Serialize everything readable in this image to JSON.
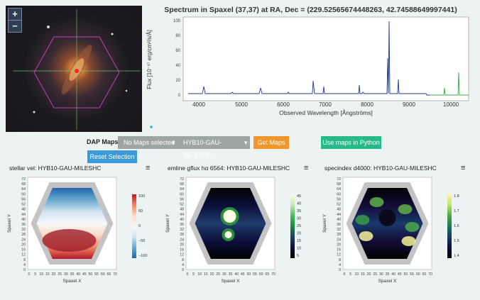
{
  "galaxy": {
    "zoom_in": "+",
    "zoom_out": "−"
  },
  "spectrum": {
    "title": "Spectrum in Spaxel (37,37) at RA, Dec = (229.52565674448263, 42.74588649997441)",
    "ylabel": "Flux [10⁻¹⁷ erg/cm²/s/Å]",
    "xlabel": "Observed Wavelength [Ångströms]",
    "xticks": [
      "4000",
      "5000",
      "6000",
      "7000",
      "8000",
      "9000",
      "10000"
    ],
    "yticks": [
      "100",
      "80",
      "60",
      "40",
      "20",
      "0"
    ]
  },
  "controls": {
    "dap_label": "DAP Maps:",
    "maps_selected": "No Maps selected",
    "binning": "HYB10-GAU-MILESHC",
    "get_maps": "Get Maps",
    "python": "Use maps in Python",
    "reset": "Reset Selection"
  },
  "maps": [
    {
      "title": "stellar vel: HYB10-GAU-MILESHC",
      "cbar": [
        "100",
        "50",
        "0",
        "−50",
        "−100"
      ]
    },
    {
      "title": "emline gflux hα 6564: HYB10-GAU-MILESHC",
      "cbar": [
        "45",
        "40",
        "35",
        "30",
        "25",
        "20",
        "15",
        "10",
        "5"
      ]
    },
    {
      "title": "specindex d4000: HYB10-GAU-MILESHC",
      "cbar": [
        "1.8",
        "1.7",
        "1.6",
        "1.5",
        "1.4"
      ]
    }
  ],
  "map_axes": {
    "xlabel": "Spaxel X",
    "ylabel": "Spaxel Y",
    "yticks": [
      "72",
      "68",
      "64",
      "60",
      "56",
      "52",
      "48",
      "44",
      "40",
      "36",
      "32",
      "28",
      "24",
      "20",
      "16",
      "12",
      "8",
      "4",
      "0"
    ],
    "xticks": [
      "0",
      "5",
      "10",
      "15",
      "20",
      "25",
      "30",
      "35",
      "40",
      "45",
      "50",
      "55",
      "60",
      "65",
      "70"
    ]
  },
  "colors": {
    "get_maps": "#f0962a",
    "python": "#27b98a",
    "reset": "#3d9ad8",
    "dropdown": "#9ea5a5"
  }
}
